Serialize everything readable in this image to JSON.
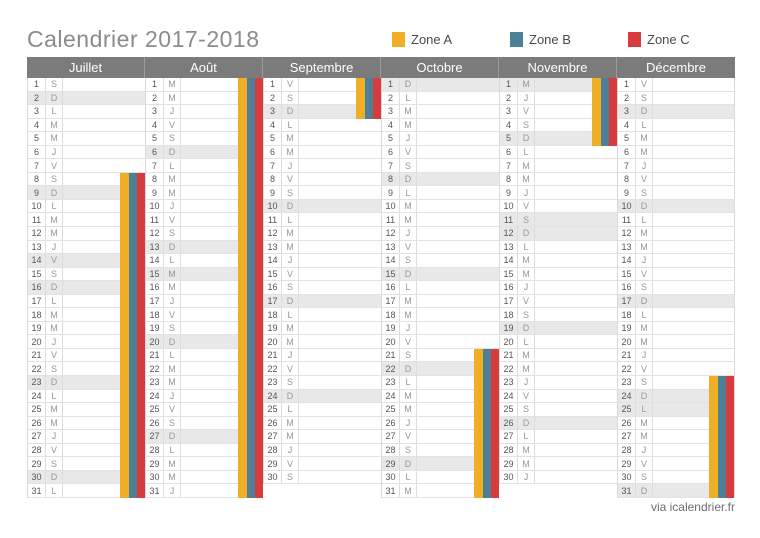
{
  "title": "Calendrier 2017-2018",
  "legend": [
    {
      "label": "Zone A",
      "color": "#f0ae24"
    },
    {
      "label": "Zone B",
      "color": "#4d7f96"
    },
    {
      "label": "Zone C",
      "color": "#d83b3e"
    }
  ],
  "footer": "via icalendrier.fr",
  "calendar": {
    "months": [
      {
        "name": "Juillet",
        "days": 31,
        "weekdays": [
          "S",
          "D",
          "L",
          "M",
          "M",
          "J",
          "V",
          "S",
          "D",
          "L",
          "M",
          "M",
          "J",
          "V",
          "S",
          "D",
          "L",
          "M",
          "M",
          "J",
          "V",
          "S",
          "D",
          "L",
          "M",
          "M",
          "J",
          "V",
          "S",
          "D",
          "L"
        ],
        "shaded": [
          2,
          9,
          14,
          16,
          23,
          30
        ],
        "vacation": {
          "from": 8,
          "to": 31
        }
      },
      {
        "name": "Août",
        "days": 31,
        "weekdays": [
          "M",
          "M",
          "J",
          "V",
          "S",
          "D",
          "L",
          "M",
          "M",
          "J",
          "V",
          "S",
          "D",
          "L",
          "M",
          "M",
          "J",
          "V",
          "S",
          "D",
          "L",
          "M",
          "M",
          "J",
          "V",
          "S",
          "D",
          "L",
          "M",
          "M",
          "J"
        ],
        "shaded": [
          6,
          13,
          15,
          20,
          27
        ],
        "vacation": {
          "from": 1,
          "to": 31
        }
      },
      {
        "name": "Septembre",
        "days": 30,
        "weekdays": [
          "V",
          "S",
          "D",
          "L",
          "M",
          "M",
          "J",
          "V",
          "S",
          "D",
          "L",
          "M",
          "M",
          "J",
          "V",
          "S",
          "D",
          "L",
          "M",
          "M",
          "J",
          "V",
          "S",
          "D",
          "L",
          "M",
          "M",
          "J",
          "V",
          "S"
        ],
        "shaded": [
          3,
          10,
          17,
          24
        ],
        "vacation": {
          "from": 1,
          "to": 3
        }
      },
      {
        "name": "Octobre",
        "days": 31,
        "weekdays": [
          "D",
          "L",
          "M",
          "M",
          "J",
          "V",
          "S",
          "D",
          "L",
          "M",
          "M",
          "J",
          "V",
          "S",
          "D",
          "L",
          "M",
          "M",
          "J",
          "V",
          "S",
          "D",
          "L",
          "M",
          "M",
          "J",
          "V",
          "S",
          "D",
          "L",
          "M"
        ],
        "shaded": [
          1,
          8,
          15,
          22,
          29
        ],
        "vacation": {
          "from": 21,
          "to": 31
        }
      },
      {
        "name": "Novembre",
        "days": 30,
        "weekdays": [
          "M",
          "J",
          "V",
          "S",
          "D",
          "L",
          "M",
          "M",
          "J",
          "V",
          "S",
          "D",
          "L",
          "M",
          "M",
          "J",
          "V",
          "S",
          "D",
          "L",
          "M",
          "M",
          "J",
          "V",
          "S",
          "D",
          "L",
          "M",
          "M",
          "J"
        ],
        "shaded": [
          1,
          5,
          11,
          12,
          19,
          26
        ],
        "vacation": {
          "from": 1,
          "to": 5
        }
      },
      {
        "name": "Décembre",
        "days": 31,
        "weekdays": [
          "V",
          "S",
          "D",
          "L",
          "M",
          "M",
          "J",
          "V",
          "S",
          "D",
          "L",
          "M",
          "M",
          "J",
          "V",
          "S",
          "D",
          "L",
          "M",
          "M",
          "J",
          "V",
          "S",
          "D",
          "L",
          "M",
          "M",
          "J",
          "V",
          "S",
          "D"
        ],
        "shaded": [
          3,
          10,
          17,
          24,
          25,
          31
        ],
        "vacation": {
          "from": 23,
          "to": 31
        }
      }
    ]
  }
}
